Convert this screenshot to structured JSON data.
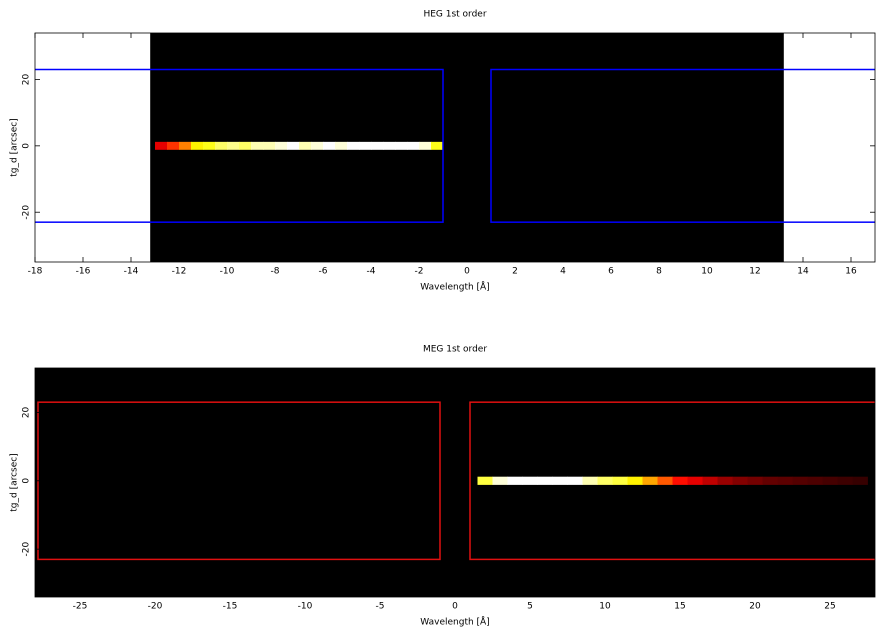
{
  "chart_data": [
    {
      "type": "image",
      "title": "HEG 1st order",
      "x_label": "Wavelength [Å]",
      "y_label": "tg_d [arcsec]",
      "xlim": [
        -18,
        17
      ],
      "ylim": [
        -35,
        34
      ],
      "xticks": [
        -18,
        -16,
        -14,
        -12,
        -10,
        -8,
        -6,
        -4,
        -2,
        0,
        2,
        4,
        6,
        8,
        10,
        12,
        14,
        16
      ],
      "yticks": [
        -20,
        0,
        20
      ],
      "image_extent": [
        -13.2,
        13.2
      ],
      "colormap": "hot",
      "streak": {
        "bins": [
          -13,
          -12.5,
          -12,
          -11.5,
          -11,
          -10.5,
          -10,
          -9.5,
          -9,
          -8.5,
          -8,
          -7.5,
          -7,
          -6.5,
          -6,
          -5.5,
          -5,
          -4.5,
          -4,
          -3.5,
          -3,
          -2.5,
          -2,
          -1.5,
          -1
        ],
        "values": [
          0.3,
          0.4,
          0.5,
          0.65,
          0.7,
          0.8,
          0.85,
          0.8,
          0.9,
          0.9,
          0.95,
          1,
          0.9,
          0.95,
          1,
          0.95,
          1,
          1,
          1,
          1,
          1,
          1,
          0.95,
          0.7
        ],
        "height": [
          -1.2,
          1.2
        ]
      },
      "regions": [
        {
          "x": [
            -30,
            -1
          ],
          "y": [
            -23,
            23
          ]
        },
        {
          "x": [
            1,
            30
          ],
          "y": [
            -23,
            23
          ]
        }
      ],
      "region_color": "#0000ff"
    },
    {
      "type": "image",
      "title": "MEG 1st order",
      "x_label": "Wavelength [Å]",
      "y_label": "tg_d [arcsec]",
      "xlim": [
        -28,
        28
      ],
      "ylim": [
        -34,
        33
      ],
      "xticks": [
        -25,
        -20,
        -15,
        -10,
        -5,
        0,
        5,
        10,
        15,
        20,
        25
      ],
      "yticks": [
        -20,
        0,
        20
      ],
      "image_extent": [
        -28,
        28
      ],
      "colormap": "hot",
      "streak": {
        "bins": [
          1.5,
          2.5,
          3.5,
          4.5,
          5.5,
          6.5,
          7.5,
          8.5,
          9.5,
          10.5,
          11.5,
          12.5,
          13.5,
          14.5,
          15.5,
          16.5,
          17.5,
          18.5,
          19.5,
          20.5,
          21.5,
          22.5,
          23.5,
          24.5,
          25.5,
          26.5,
          27.5
        ],
        "values": [
          0.75,
          0.95,
          1,
          1,
          1,
          1,
          1,
          0.9,
          0.8,
          0.75,
          0.65,
          0.55,
          0.45,
          0.35,
          0.3,
          0.25,
          0.2,
          0.17,
          0.15,
          0.13,
          0.12,
          0.11,
          0.1,
          0.09,
          0.08,
          0.07
        ],
        "height": [
          -1.2,
          1.2
        ]
      },
      "regions": [
        {
          "x": [
            -27.8,
            -1
          ],
          "y": [
            -23,
            23
          ]
        },
        {
          "x": [
            1,
            30
          ],
          "y": [
            -23,
            23
          ]
        }
      ],
      "region_color": "#e01010"
    }
  ]
}
